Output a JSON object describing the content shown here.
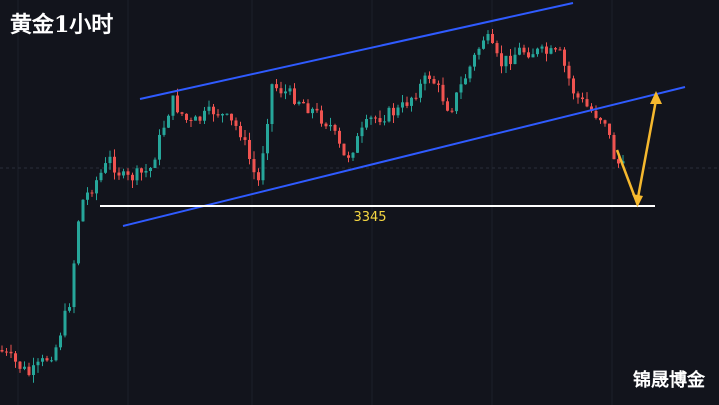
{
  "header": {
    "title": "黄金1小时"
  },
  "chart": {
    "level_label": "3345"
  },
  "watermark": "锦晟博金"
}
